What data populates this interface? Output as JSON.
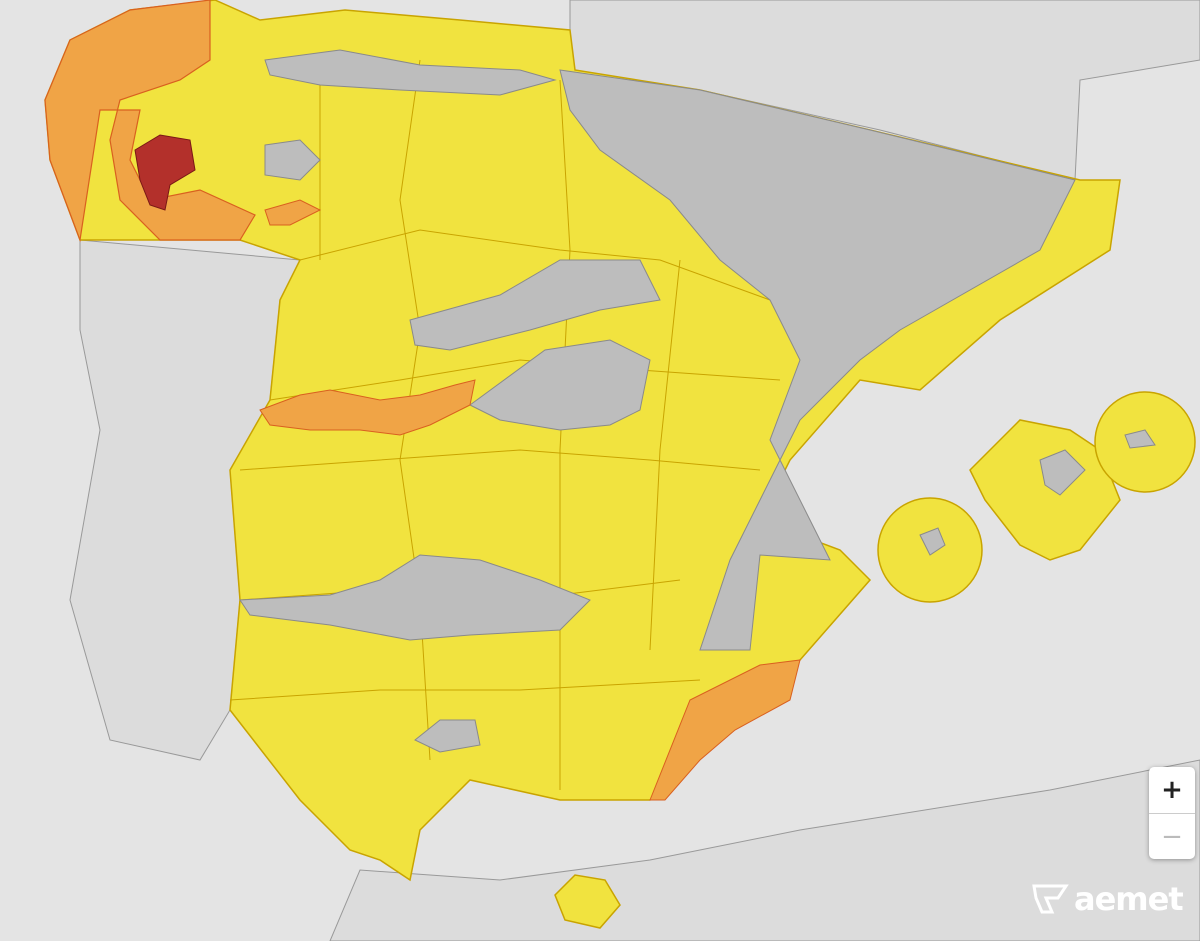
{
  "map": {
    "colors": {
      "background": "#e4e4e4",
      "land": "#dadada",
      "no_warning": "#bdbdbd",
      "yellow": "#f1e33f",
      "orange": "#f0a446",
      "red": "#b3302b",
      "border": "#c9a400"
    },
    "legend_levels": [
      "yellow",
      "orange",
      "red"
    ]
  },
  "controls": {
    "zoom_in": "+",
    "zoom_out": "−"
  },
  "logo": {
    "text": "aemet",
    "icon": "aemet-logo-icon"
  }
}
